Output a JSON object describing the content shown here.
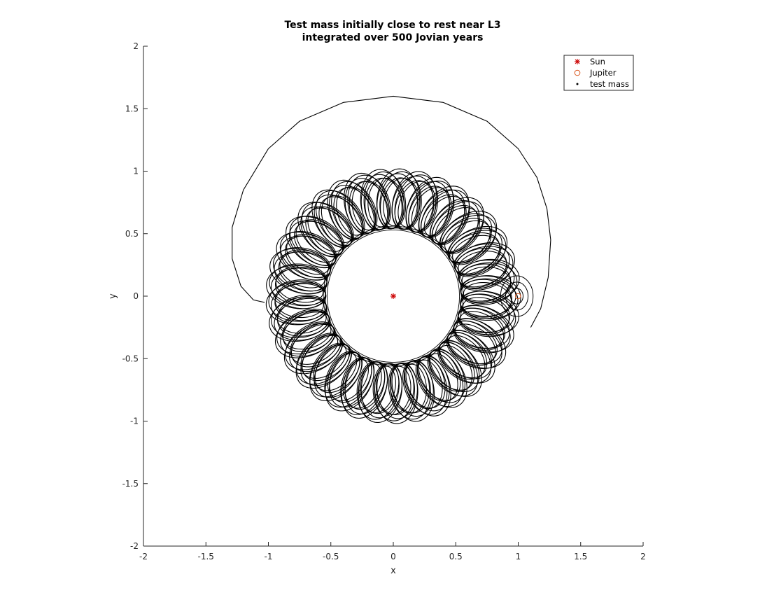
{
  "chart_data": {
    "type": "scatter",
    "title": [
      "Test mass initially close to rest near L3",
      "integrated over 500 Jovian years"
    ],
    "xlabel": "x",
    "ylabel": "y",
    "xlim": [
      -2,
      2
    ],
    "ylim": [
      -2,
      2
    ],
    "xticks": [
      -2,
      -1.5,
      -1,
      -0.5,
      0,
      0.5,
      1,
      1.5,
      2
    ],
    "yticks": [
      -2,
      -1.5,
      -1,
      -0.5,
      0,
      0.5,
      1,
      1.5,
      2
    ],
    "xticklabels": [
      "-2",
      "-1.5",
      "-1",
      "-0.5",
      "0",
      "0.5",
      "1",
      "1.5",
      "2"
    ],
    "yticklabels": [
      "-2",
      "-1.5",
      "-1",
      "-0.5",
      "0",
      "0.5",
      "1",
      "1.5",
      "2"
    ],
    "grid": false,
    "legend_position": "top-right",
    "colors": {
      "sun": "#cc0000",
      "jupiter": "#d95319",
      "test_mass": "#000000",
      "axes": "#262626"
    },
    "series": [
      {
        "name": "Sun",
        "marker": "asterisk",
        "points": [
          [
            0,
            0
          ]
        ]
      },
      {
        "name": "Jupiter",
        "marker": "circle",
        "points": [
          [
            0.999,
            0
          ]
        ]
      },
      {
        "name": "test mass",
        "marker": "dot",
        "arc": [
          [
            -1.03,
            -0.05
          ],
          [
            -1.12,
            -0.03
          ],
          [
            -1.22,
            0.08
          ],
          [
            -1.29,
            0.3
          ],
          [
            -1.29,
            0.55
          ],
          [
            -1.2,
            0.85
          ],
          [
            -1.0,
            1.18
          ],
          [
            -0.75,
            1.4
          ],
          [
            -0.4,
            1.55
          ],
          [
            0,
            1.6
          ],
          [
            0.4,
            1.55
          ],
          [
            0.75,
            1.4
          ],
          [
            1.0,
            1.18
          ],
          [
            1.15,
            0.95
          ],
          [
            1.23,
            0.7
          ],
          [
            1.26,
            0.45
          ],
          [
            1.24,
            0.15
          ],
          [
            1.18,
            -0.1
          ],
          [
            1.1,
            -0.25
          ]
        ],
        "orbit_radius_range": [
          0.52,
          1.0
        ],
        "loop_count": 37
      }
    ]
  }
}
